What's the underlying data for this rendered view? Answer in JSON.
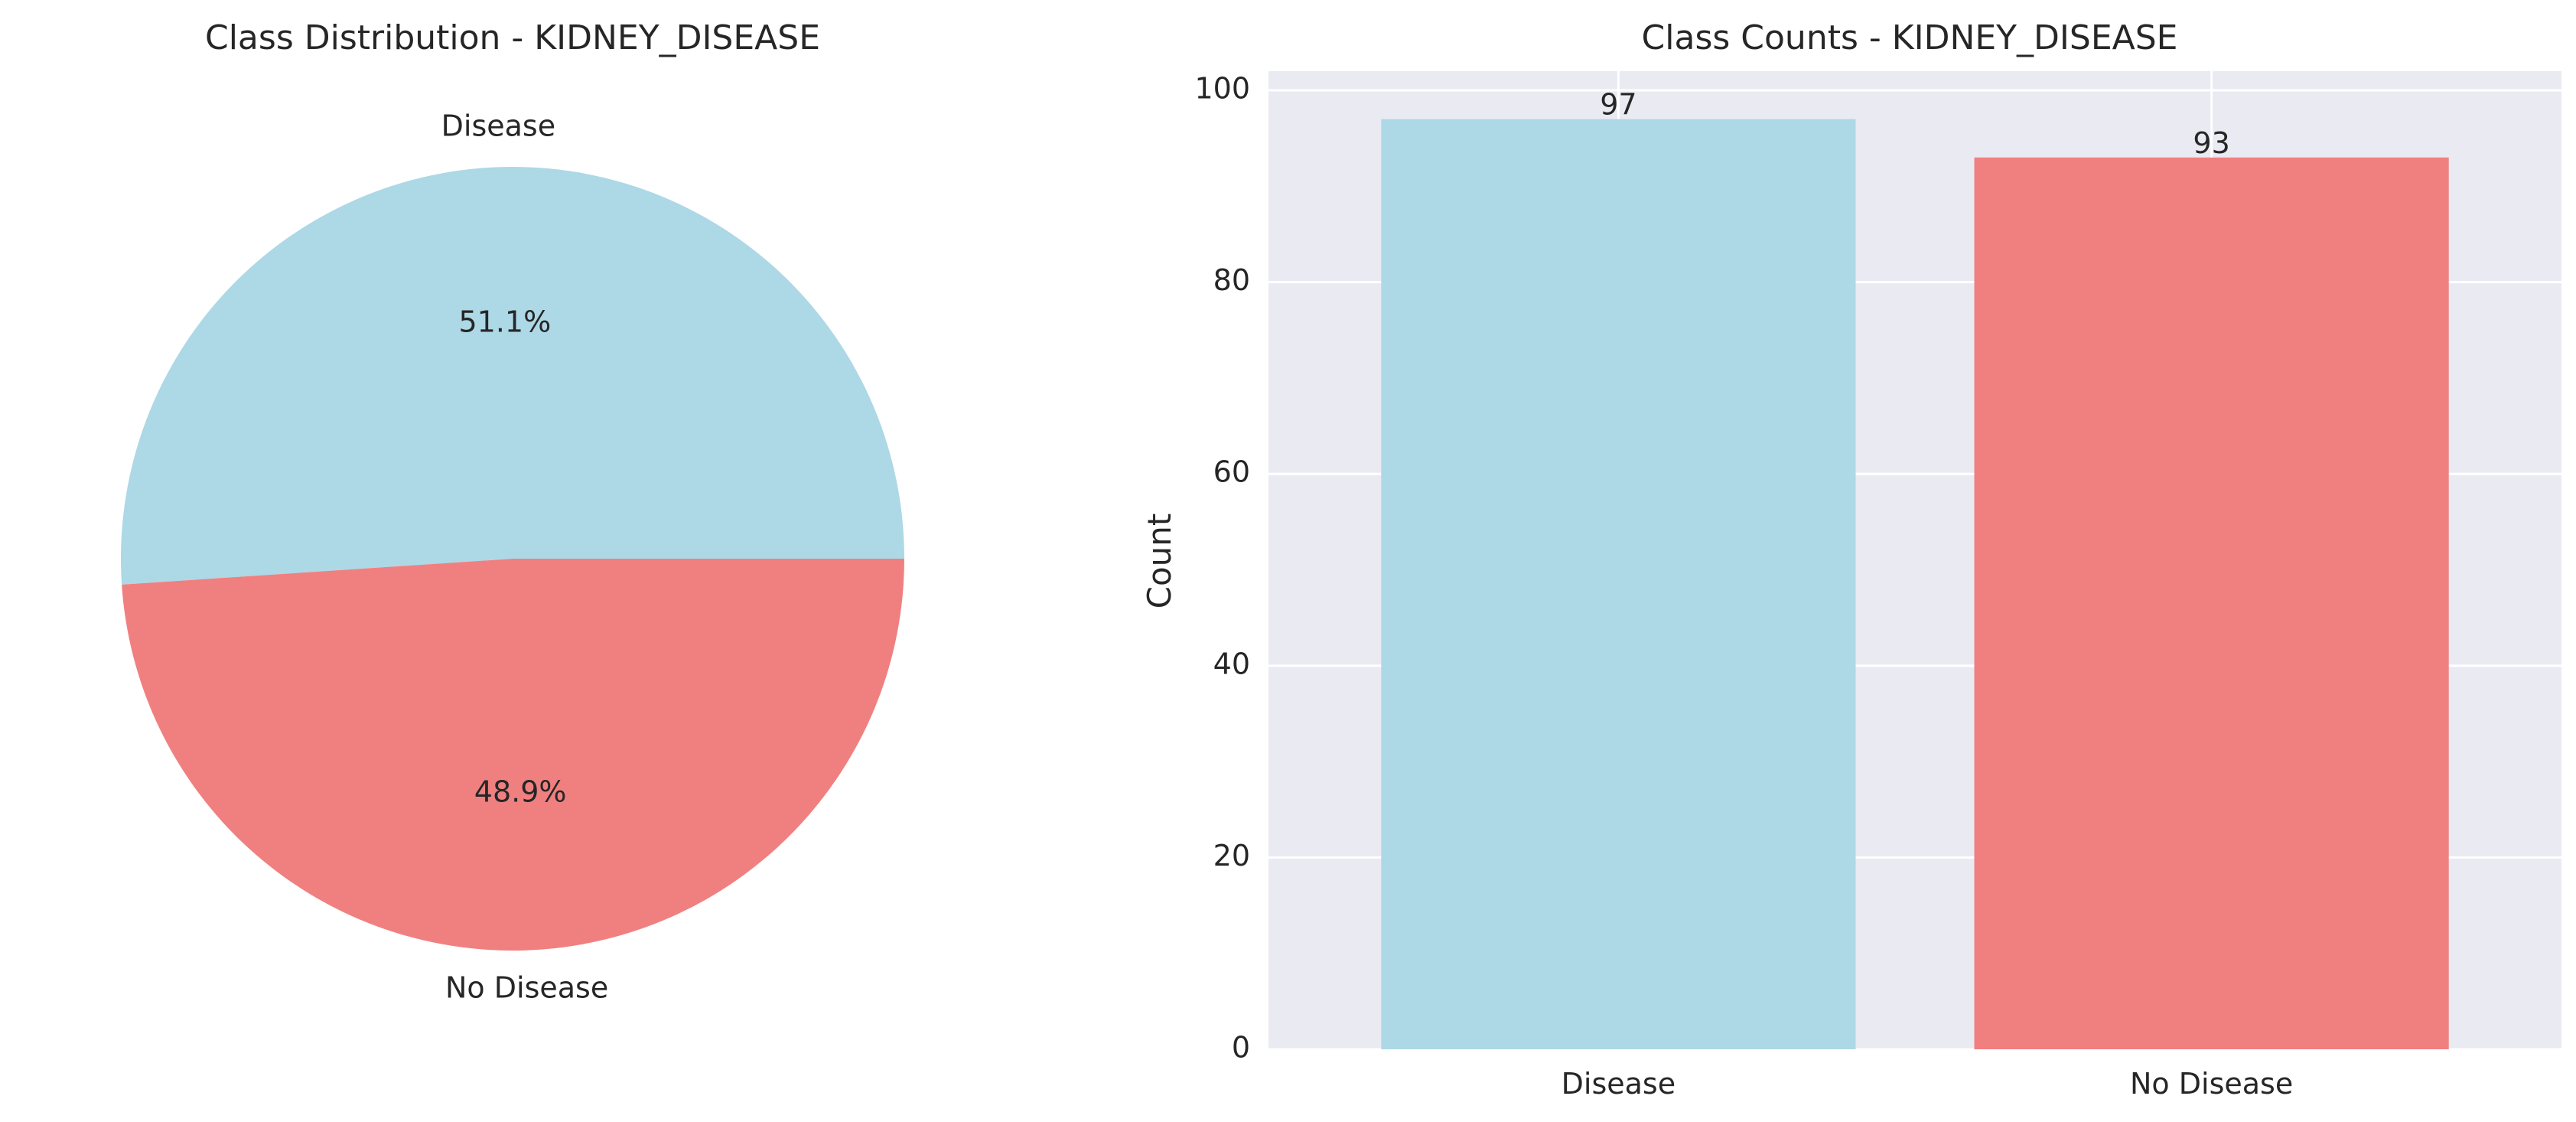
{
  "chart_data": [
    {
      "type": "pie",
      "title": "Class Distribution - KIDNEY_DISEASE",
      "slices": [
        {
          "label": "Disease",
          "value": 97,
          "percent_label": "51.1%",
          "color": "#add8e6"
        },
        {
          "label": "No Disease",
          "value": 93,
          "percent_label": "48.9%",
          "color": "#f08080"
        }
      ]
    },
    {
      "type": "bar",
      "title": "Class Counts - KIDNEY_DISEASE",
      "categories": [
        "Disease",
        "No Disease"
      ],
      "values": [
        97,
        93
      ],
      "value_labels": [
        "97",
        "93"
      ],
      "colors": [
        "#add8e6",
        "#f08080"
      ],
      "xlabel": "",
      "ylabel": "Count",
      "ylim": [
        0,
        102
      ],
      "yticks": [
        0,
        20,
        40,
        60,
        80,
        100
      ],
      "grid": true,
      "background": "#eaeaf2"
    }
  ]
}
